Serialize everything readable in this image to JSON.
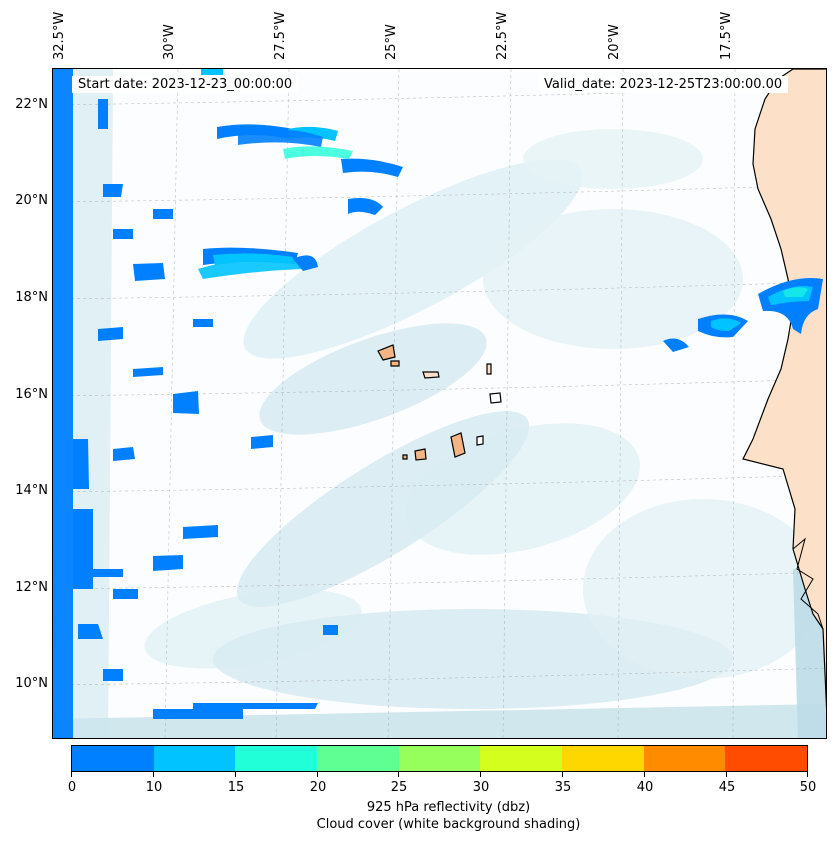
{
  "header": {
    "start_date": "Start date: 2023-12-23_00:00:00",
    "valid_date": "Valid_date: 2023-12-25T23:00:00.00"
  },
  "map": {
    "lon_labels": [
      "32.5°W",
      "30°W",
      "27.5°W",
      "25°W",
      "22.5°W",
      "20°W",
      "17.5°W"
    ],
    "lat_labels": [
      "22°N",
      "20°N",
      "18°N",
      "16°N",
      "14°N",
      "12°N",
      "10°N"
    ],
    "colors": {
      "land": "#fde0c8",
      "island": "#f4b483",
      "cloud_light": "#d9ecf2",
      "cloud_mid": "#b9dbe6",
      "refl_0_10": "#0080ff",
      "refl_10_15": "#00c3ff",
      "refl_15_20": "#20ffd8"
    }
  },
  "colorbar": {
    "label": "925 hPa reflectivity (dbz)",
    "sublabel": "Cloud cover (white background shading)",
    "ticks": [
      "0",
      "10",
      "15",
      "20",
      "25",
      "30",
      "35",
      "40",
      "45",
      "50"
    ],
    "colors": [
      "#0080ff",
      "#00c3ff",
      "#20ffd8",
      "#60ff94",
      "#96ff5b",
      "#d4ff1e",
      "#ffd700",
      "#ff8c00",
      "#ff4c00"
    ]
  }
}
